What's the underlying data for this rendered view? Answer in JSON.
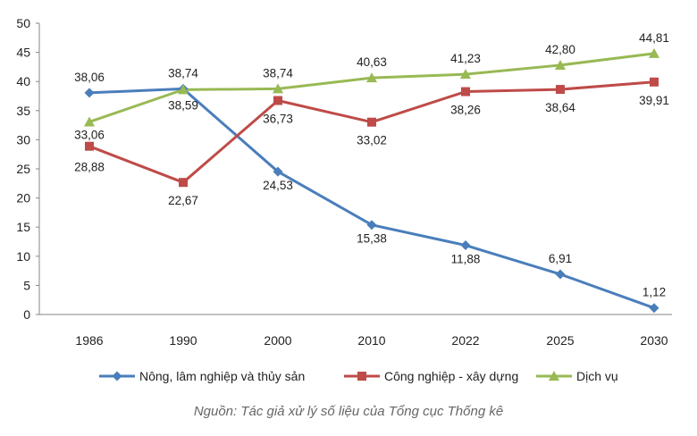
{
  "chart_data": {
    "type": "line",
    "x": [
      "1986",
      "1990",
      "2000",
      "2010",
      "2022",
      "2025",
      "2030"
    ],
    "ylim": [
      0,
      50
    ],
    "yticks": [
      "0",
      "5",
      "10",
      "15",
      "20",
      "25",
      "30",
      "35",
      "40",
      "45",
      "50"
    ],
    "grid": false,
    "legend_position": "bottom",
    "series": [
      {
        "name": "Nông, lâm nghiệp và thủy sản",
        "color": "#4a7ebb",
        "marker": "diamond",
        "values": [
          38.06,
          38.74,
          24.53,
          15.38,
          11.88,
          6.91,
          1.12
        ],
        "labels": [
          "38,06",
          "38,74",
          "24,53",
          "15,38",
          "11,88",
          "6,91",
          "1,12"
        ]
      },
      {
        "name": "Công nghiệp - xây dựng",
        "color": "#be4b48",
        "marker": "square",
        "values": [
          28.88,
          22.67,
          36.73,
          33.02,
          38.26,
          38.64,
          39.91
        ],
        "labels": [
          "28,88",
          "22,67",
          "36,73",
          "33,02",
          "38,26",
          "38,64",
          "39,91"
        ]
      },
      {
        "name": "Dịch vụ",
        "color": "#98b954",
        "marker": "triangle",
        "values": [
          33.06,
          38.59,
          38.74,
          40.63,
          41.23,
          42.8,
          44.81
        ],
        "labels": [
          "33,06",
          "38,59",
          "38,74",
          "40,63",
          "41,23",
          "42,80",
          "44,81"
        ]
      }
    ]
  },
  "source": "Nguồn: Tác giả xử lý số liệu của Tổng cục Thống kê"
}
